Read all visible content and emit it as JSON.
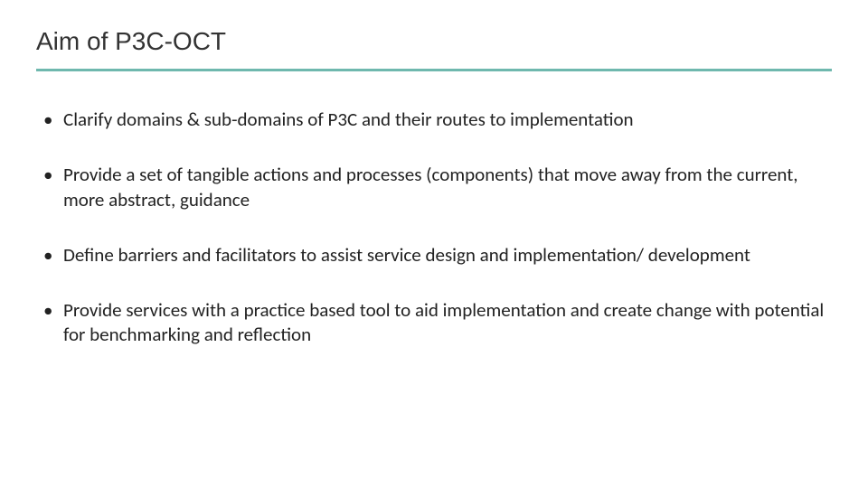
{
  "slide": {
    "title": "Aim of P3C-OCT",
    "underline_color": "#6fb8ae",
    "background_color": "#ffffff",
    "title_color": "#333333",
    "title_fontsize": 28,
    "bullet_fontsize": 21,
    "bullet_color": "#222222",
    "bullets": [
      "Clarify domains & sub-domains of P3C and their routes to implementation",
      "Provide a set of tangible actions and processes (components) that move away from the current, more abstract, guidance",
      "Define barriers and facilitators to assist service design and implementation/ development",
      "Provide services with a practice based tool to aid implementation and create change with potential for benchmarking and reflection"
    ]
  }
}
